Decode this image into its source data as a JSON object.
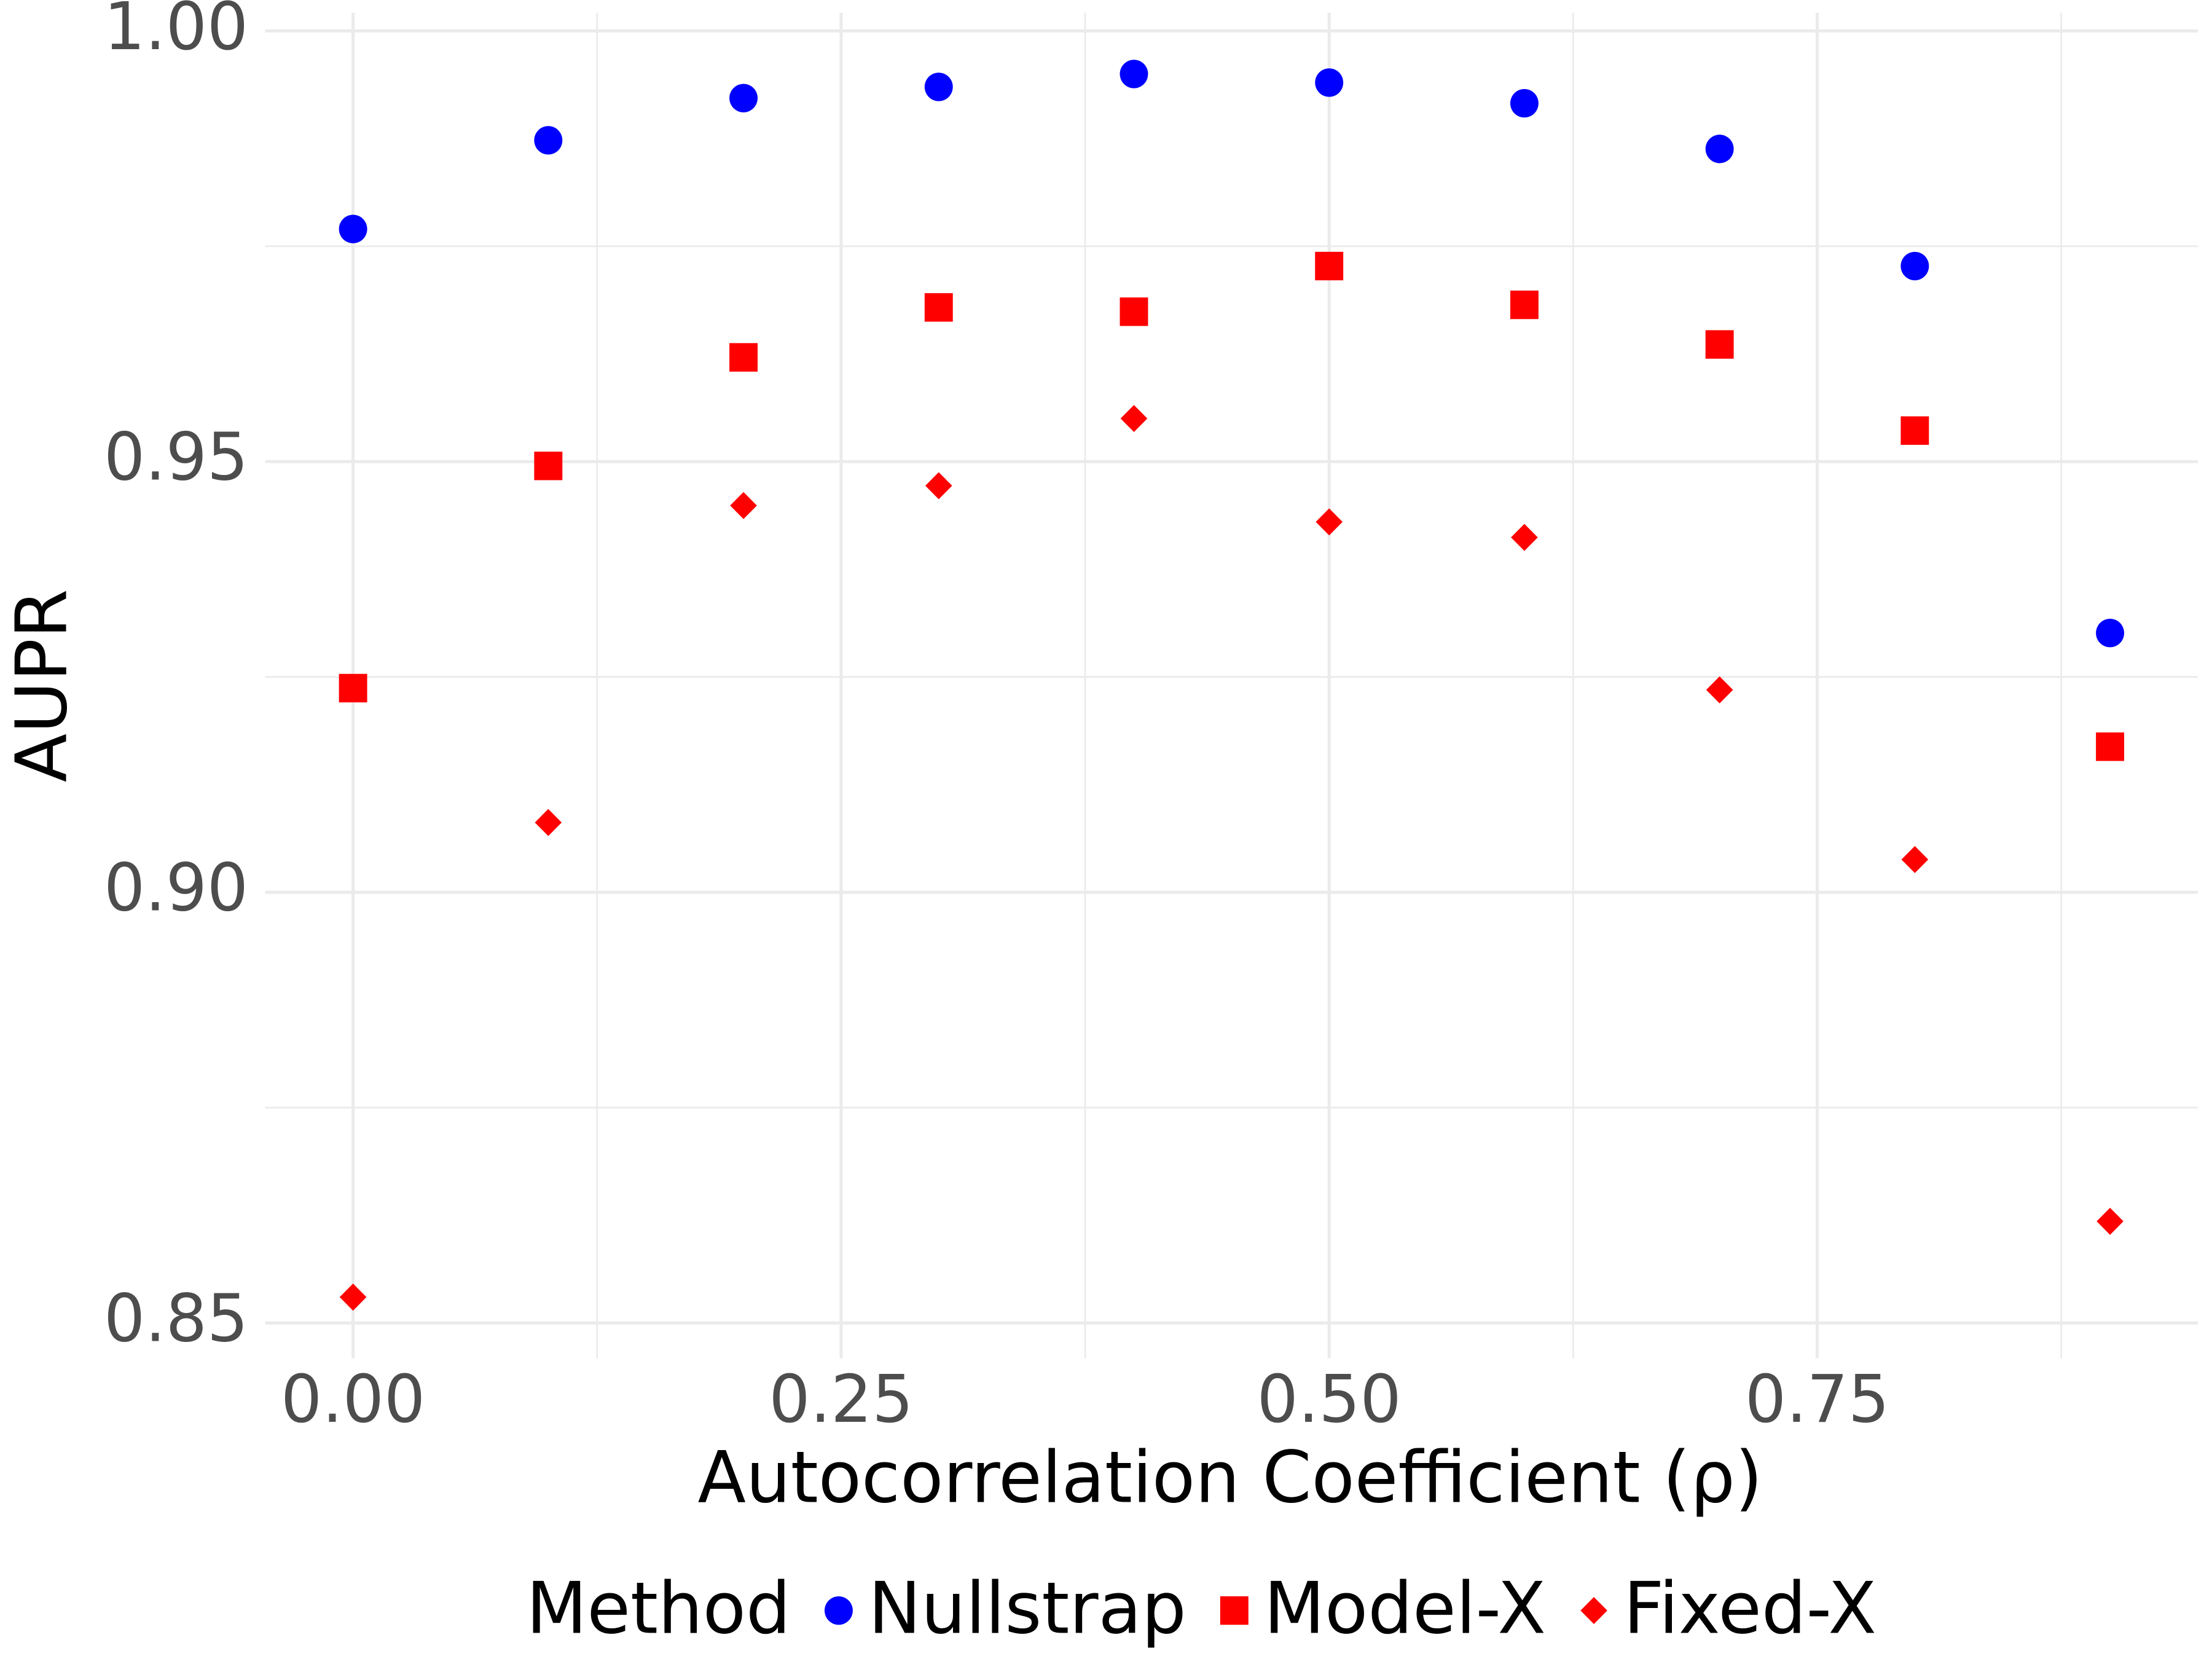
{
  "chart_data": {
    "type": "scatter",
    "x_label": "Autocorrelation Coefficient (ρ)",
    "y_label": "AUPR",
    "legend_title": "Method",
    "legend": "bottom",
    "grid": true,
    "xlim": [
      -0.045,
      0.945
    ],
    "ylim": [
      0.8459,
      1.0021
    ],
    "xticks": [
      {
        "value": 0,
        "label": "0.00"
      },
      0.25,
      {
        "value": 0.5,
        "label": "0.50"
      },
      0.75
    ],
    "yticks": [
      0.85,
      {
        "value": 0.9,
        "label": "0.90"
      },
      0.95,
      {
        "value": 1,
        "label": "1.00"
      }
    ],
    "xminor": [
      0.125,
      0.375,
      0.625,
      0.875
    ],
    "yminor": [
      0.875,
      0.925,
      0.975
    ],
    "x": [
      0,
      0.1,
      0.2,
      0.3,
      0.4,
      0.5,
      0.6,
      0.7,
      0.8,
      0.9
    ],
    "series": [
      {
        "name": "Nullstrap",
        "color": "#0000ff",
        "shape": "circle",
        "values": [
          0.977,
          0.9873,
          0.9922,
          0.9935,
          0.995,
          0.994,
          0.9916,
          0.9863,
          0.9727,
          0.9301
        ]
      },
      {
        "name": "Model-X",
        "color": "#ff0000",
        "shape": "square",
        "values": [
          0.9237,
          0.9495,
          0.9621,
          0.9679,
          0.9674,
          0.9727,
          0.9682,
          0.9636,
          0.9536,
          0.9169
        ]
      },
      {
        "name": "Fixed-X",
        "color": "#ff0000",
        "shape": "diamond",
        "values": [
          0.853,
          0.9081,
          0.9449,
          0.9472,
          0.955,
          0.943,
          0.9412,
          0.9235,
          0.9038,
          0.8618
        ]
      }
    ]
  }
}
